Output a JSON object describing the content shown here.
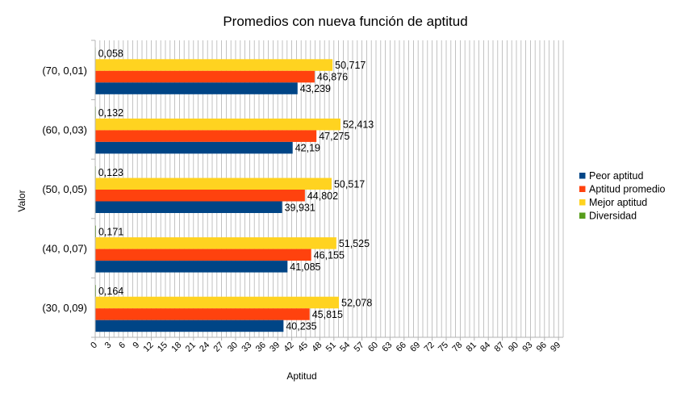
{
  "chart_data": {
    "type": "bar",
    "orientation": "horizontal",
    "title": "Promedios con nueva función de aptitud",
    "xlabel": "Aptitud",
    "ylabel": "Valor",
    "xlim": [
      0,
      100
    ],
    "xtick_step": 3,
    "grid": true,
    "legend_position": "right",
    "categories": [
      "(70, 0,01)",
      "(60, 0,03)",
      "(50, 0,05)",
      "(40, 0,07)",
      "(30, 0,09)"
    ],
    "series": [
      {
        "name": "Peor aptitud",
        "color": "#004586",
        "values": [
          43.239,
          42.19,
          39.931,
          41.085,
          40.235
        ],
        "labels": [
          "43,239",
          "42,19",
          "39,931",
          "41,085",
          "40,235"
        ]
      },
      {
        "name": "Aptitud promedio",
        "color": "#ff420e",
        "values": [
          46.876,
          47.275,
          44.802,
          46.155,
          45.815
        ],
        "labels": [
          "46,876",
          "47,275",
          "44,802",
          "46,155",
          "45,815"
        ]
      },
      {
        "name": "Mejor aptitud",
        "color": "#ffd320",
        "values": [
          50.717,
          52.413,
          50.517,
          51.525,
          52.078
        ],
        "labels": [
          "50,717",
          "52,413",
          "50,517",
          "51,525",
          "52,078"
        ]
      },
      {
        "name": "Diversidad",
        "color": "#579d1c",
        "values": [
          0.058,
          0.132,
          0.123,
          0.171,
          0.164
        ],
        "labels": [
          "0,058",
          "0,132",
          "0,123",
          "0,171",
          "0,164"
        ]
      }
    ]
  }
}
